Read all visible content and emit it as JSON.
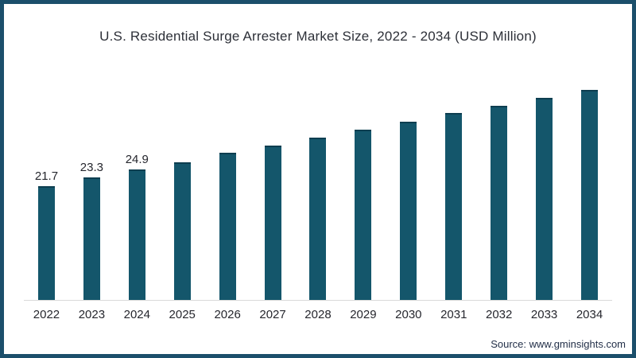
{
  "chart_data": {
    "type": "bar",
    "title": "U.S. Residential Surge Arrester Market Size, 2022 - 2034 (USD Million)",
    "categories": [
      "2022",
      "2023",
      "2024",
      "2025",
      "2026",
      "2027",
      "2028",
      "2029",
      "2030",
      "2031",
      "2032",
      "2033",
      "2034"
    ],
    "values": [
      21.7,
      23.3,
      24.9,
      26.3,
      28.1,
      29.4,
      31.0,
      32.4,
      34.0,
      35.6,
      37.1,
      38.6,
      40.1
    ],
    "data_labels": [
      "21.7",
      "23.3",
      "24.9",
      "",
      "",
      "",
      "",
      "",
      "",
      "",
      "",
      "",
      ""
    ],
    "xlabel": "",
    "ylabel": "",
    "ylim": [
      0,
      45
    ],
    "grid": false,
    "legend": false,
    "bar_color": "#14566b",
    "bar_top_edge_color": "#0d3e50",
    "axis_line_color": "#d9d9d9",
    "frame_border_color": "#1b4f6b",
    "title_color": "#2d3038",
    "label_color": "#26272e"
  },
  "source": "Source: www.gminsights.com"
}
